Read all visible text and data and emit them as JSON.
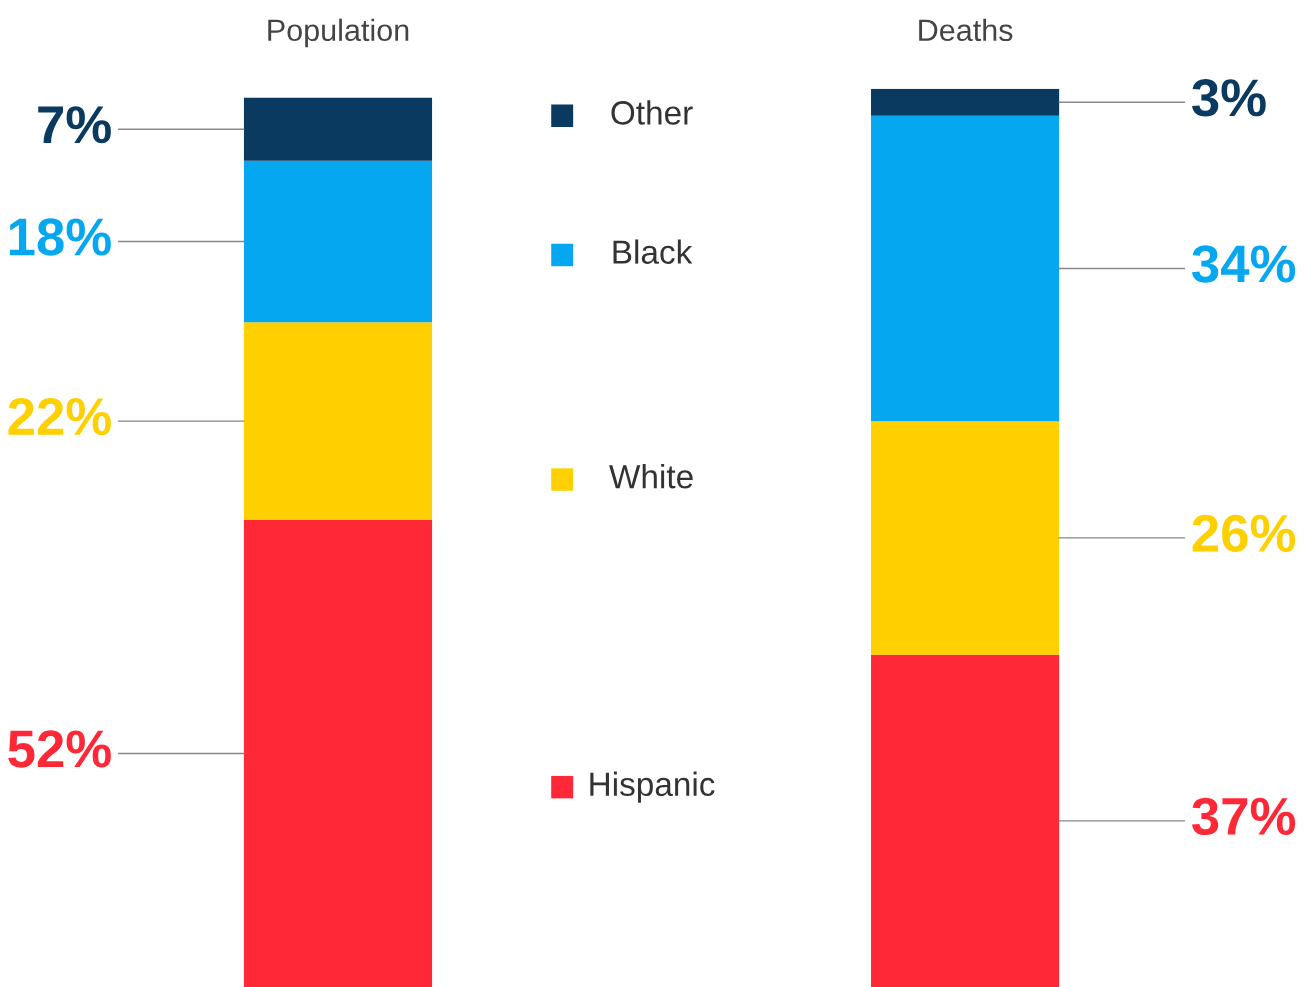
{
  "chart_data": {
    "type": "bar",
    "stacked": true,
    "legend": "center",
    "grid": false,
    "categories": [
      "Population",
      "Deaths"
    ],
    "series": [
      {
        "name": "Hispanic",
        "color": "#ff2836",
        "values": [
          52,
          37
        ],
        "value_labels": [
          "52%",
          "37%"
        ]
      },
      {
        "name": "White",
        "color": "#ffd000",
        "values": [
          22,
          26
        ],
        "value_labels": [
          "22%",
          "26%"
        ]
      },
      {
        "name": "Black",
        "color": "#05a8f0",
        "values": [
          18,
          34
        ],
        "value_labels": [
          "18%",
          "34%"
        ]
      },
      {
        "name": "Other",
        "color": "#0a3a60",
        "values": [
          7,
          3
        ],
        "value_labels": [
          "7%",
          "3%"
        ]
      }
    ]
  }
}
